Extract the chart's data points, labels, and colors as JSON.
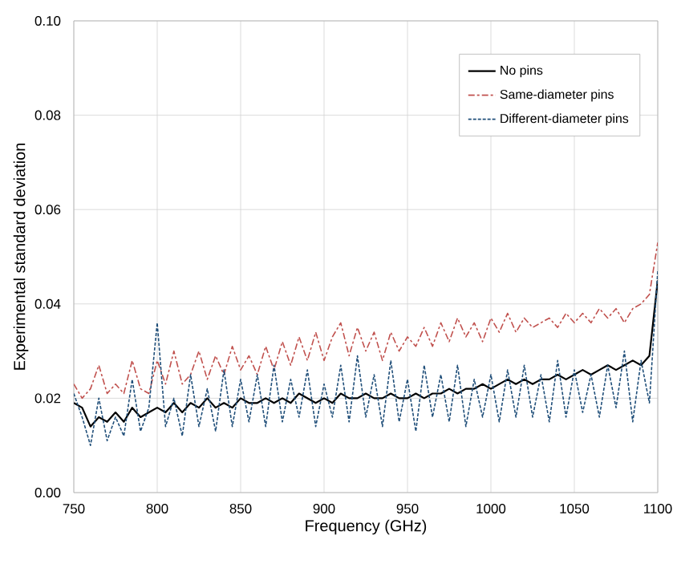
{
  "chart_data": {
    "type": "line",
    "xlabel": "Frequency (GHz)",
    "ylabel": "Experimental standard deviation",
    "x": [
      750,
      755,
      760,
      765,
      770,
      775,
      780,
      785,
      790,
      795,
      800,
      805,
      810,
      815,
      820,
      825,
      830,
      835,
      840,
      845,
      850,
      855,
      860,
      865,
      870,
      875,
      880,
      885,
      890,
      895,
      900,
      905,
      910,
      915,
      920,
      925,
      930,
      935,
      940,
      945,
      950,
      955,
      960,
      965,
      970,
      975,
      980,
      985,
      990,
      995,
      1000,
      1005,
      1010,
      1015,
      1020,
      1025,
      1030,
      1035,
      1040,
      1045,
      1050,
      1055,
      1060,
      1065,
      1070,
      1075,
      1080,
      1085,
      1090,
      1095,
      1100
    ],
    "series": [
      {
        "name": "No pins",
        "color": "#000000",
        "line_style": "solid",
        "values": [
          0.019,
          0.018,
          0.014,
          0.016,
          0.015,
          0.017,
          0.015,
          0.018,
          0.016,
          0.017,
          0.018,
          0.017,
          0.019,
          0.017,
          0.019,
          0.018,
          0.02,
          0.018,
          0.019,
          0.018,
          0.02,
          0.019,
          0.019,
          0.02,
          0.019,
          0.02,
          0.019,
          0.021,
          0.02,
          0.019,
          0.02,
          0.019,
          0.021,
          0.02,
          0.02,
          0.021,
          0.02,
          0.02,
          0.021,
          0.02,
          0.02,
          0.021,
          0.02,
          0.021,
          0.021,
          0.022,
          0.021,
          0.022,
          0.022,
          0.023,
          0.022,
          0.023,
          0.024,
          0.023,
          0.024,
          0.023,
          0.024,
          0.024,
          0.025,
          0.024,
          0.025,
          0.026,
          0.025,
          0.026,
          0.027,
          0.026,
          0.027,
          0.028,
          0.027,
          0.029,
          0.045
        ]
      },
      {
        "name": "Same-diameter pins",
        "color": "#c0504d",
        "line_style": "dashed",
        "values": [
          0.023,
          0.02,
          0.022,
          0.027,
          0.021,
          0.023,
          0.021,
          0.028,
          0.022,
          0.021,
          0.028,
          0.023,
          0.03,
          0.023,
          0.025,
          0.03,
          0.024,
          0.029,
          0.025,
          0.031,
          0.026,
          0.029,
          0.025,
          0.031,
          0.026,
          0.032,
          0.027,
          0.033,
          0.028,
          0.034,
          0.028,
          0.033,
          0.036,
          0.029,
          0.035,
          0.03,
          0.034,
          0.028,
          0.034,
          0.03,
          0.033,
          0.031,
          0.035,
          0.031,
          0.036,
          0.032,
          0.037,
          0.033,
          0.036,
          0.032,
          0.037,
          0.034,
          0.038,
          0.034,
          0.037,
          0.035,
          0.036,
          0.037,
          0.035,
          0.038,
          0.036,
          0.038,
          0.036,
          0.039,
          0.037,
          0.039,
          0.036,
          0.039,
          0.04,
          0.042,
          0.053
        ]
      },
      {
        "name": "Different-diameter pins",
        "color": "#1f4e79",
        "line_style": "dotted",
        "values": [
          0.021,
          0.016,
          0.01,
          0.02,
          0.011,
          0.016,
          0.012,
          0.024,
          0.013,
          0.018,
          0.036,
          0.014,
          0.02,
          0.012,
          0.025,
          0.014,
          0.022,
          0.013,
          0.026,
          0.014,
          0.024,
          0.015,
          0.025,
          0.014,
          0.027,
          0.015,
          0.024,
          0.016,
          0.026,
          0.014,
          0.023,
          0.016,
          0.027,
          0.015,
          0.029,
          0.016,
          0.025,
          0.014,
          0.028,
          0.015,
          0.024,
          0.013,
          0.027,
          0.016,
          0.025,
          0.015,
          0.027,
          0.014,
          0.024,
          0.016,
          0.025,
          0.015,
          0.026,
          0.016,
          0.027,
          0.016,
          0.025,
          0.015,
          0.028,
          0.016,
          0.026,
          0.017,
          0.025,
          0.016,
          0.027,
          0.018,
          0.03,
          0.015,
          0.028,
          0.019,
          0.047
        ]
      }
    ],
    "xlim": [
      750,
      1100
    ],
    "ylim": [
      0,
      0.1
    ],
    "xticks": [
      750,
      800,
      850,
      900,
      950,
      1000,
      1050,
      1100
    ],
    "yticks": [
      {
        "value": 0,
        "label": "0.00"
      },
      {
        "value": 0.02,
        "label": "0.02"
      },
      {
        "value": 0.04,
        "label": "0.04"
      },
      {
        "value": 0.06,
        "label": "0.06"
      },
      {
        "value": 0.08,
        "label": "0.08"
      },
      {
        "value": 0.1,
        "label": "0.10"
      }
    ],
    "grid": true,
    "legend": "top right",
    "marker": "none"
  }
}
